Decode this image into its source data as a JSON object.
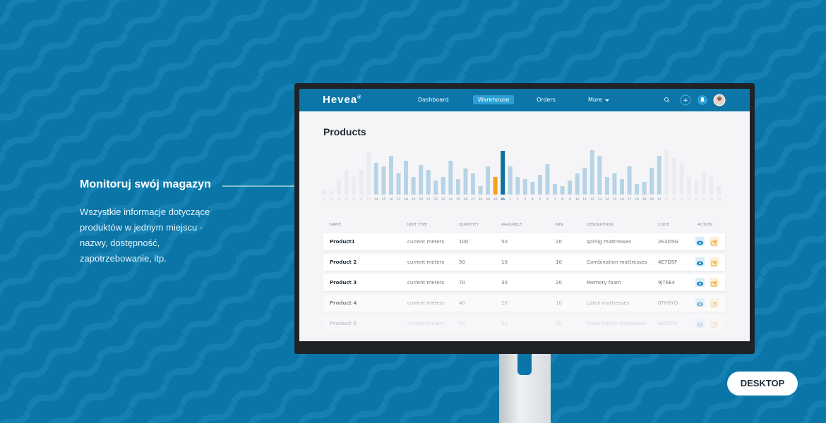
{
  "feature": {
    "title": "Monitoruj swój magazyn",
    "description": [
      "Wszystkie informacje dotyczące",
      "produktów w jednym miejscu -",
      "nazwy, dostępność,",
      "zapotrzebowanie, itp."
    ]
  },
  "badge": "DESKTOP",
  "app": {
    "brand": "Hevea",
    "brand_mark": "®",
    "nav": [
      "Dashboard",
      "Warehouse",
      "Orders",
      "More"
    ],
    "page_title": "Products"
  },
  "chart_data": {
    "type": "bar",
    "categories": [
      "7",
      "8",
      "9",
      "10",
      "11",
      "12",
      "13",
      "14",
      "15",
      "16",
      "17",
      "18",
      "19",
      "20",
      "21",
      "22",
      "23",
      "24",
      "25",
      "26",
      "27",
      "28",
      "29",
      "30",
      "31",
      "1",
      "2",
      "3",
      "4",
      "5",
      "6",
      "7",
      "8",
      "9",
      "10",
      "11",
      "12",
      "13",
      "14",
      "15",
      "16",
      "17",
      "18",
      "19",
      "20",
      "21",
      "22",
      "23",
      "24",
      "25",
      "26",
      "27",
      "28",
      "29"
    ],
    "values": [
      6,
      5,
      20,
      35,
      25,
      35,
      60,
      45,
      40,
      55,
      30,
      48,
      25,
      42,
      35,
      20,
      25,
      48,
      22,
      37,
      30,
      12,
      40,
      25,
      62,
      40,
      25,
      22,
      18,
      28,
      43,
      15,
      12,
      20,
      30,
      38,
      63,
      55,
      25,
      30,
      22,
      40,
      15,
      18,
      38,
      55,
      63,
      52,
      44,
      25,
      20,
      30,
      25,
      12
    ],
    "colors": [
      "#ececf0",
      "#ececf0",
      "#ececf0",
      "#ececf0",
      "#ececf0",
      "#ececf0",
      "#ececf0",
      "#b7d4e6",
      "#b7d4e6",
      "#b7d4e6",
      "#b7d4e6",
      "#b7d4e6",
      "#b7d4e6",
      "#b7d4e6",
      "#b7d4e6",
      "#b7d4e6",
      "#b7d4e6",
      "#b7d4e6",
      "#b7d4e6",
      "#b7d4e6",
      "#b7d4e6",
      "#b7d4e6",
      "#b7d4e6",
      "#f4a11e",
      "#11709b",
      "#b7d4e6",
      "#b7d4e6",
      "#b7d4e6",
      "#b7d4e6",
      "#b7d4e6",
      "#b7d4e6",
      "#b7d4e6",
      "#b7d4e6",
      "#b7d4e6",
      "#b7d4e6",
      "#b7d4e6",
      "#b7d4e6",
      "#b7d4e6",
      "#b7d4e6",
      "#b7d4e6",
      "#b7d4e6",
      "#b7d4e6",
      "#b7d4e6",
      "#b7d4e6",
      "#b7d4e6",
      "#b7d4e6",
      "#ececf0",
      "#ececf0",
      "#ececf0",
      "#ececf0",
      "#ececf0",
      "#ececf0",
      "#ececf0",
      "#ececf0"
    ]
  },
  "table": {
    "columns": [
      "NAME",
      "UNIT TYPE",
      "QUANTITY",
      "AVAILABLE",
      "MIN",
      "DESCRIPTION",
      "CODE",
      "ACTION"
    ],
    "rows": [
      [
        "Product1",
        "current meters",
        "100",
        "50",
        "20",
        "spring mattresses",
        "2E3D5G"
      ],
      [
        "Product 2",
        "current meters",
        "50",
        "10",
        "10",
        "Combination mattresses",
        "4E7D5F"
      ],
      [
        "Product 3",
        "current meters",
        "70",
        "30",
        "20",
        "Memory foam",
        "9JT6E4"
      ],
      [
        "Product 4",
        "current meters",
        "40",
        "20",
        "10",
        "Latex mattresses",
        "8TH6YG"
      ],
      [
        "Product 5",
        "current meters",
        "50",
        "50",
        "20",
        "Sleepmotion mattresses",
        "8EFD59"
      ]
    ]
  }
}
